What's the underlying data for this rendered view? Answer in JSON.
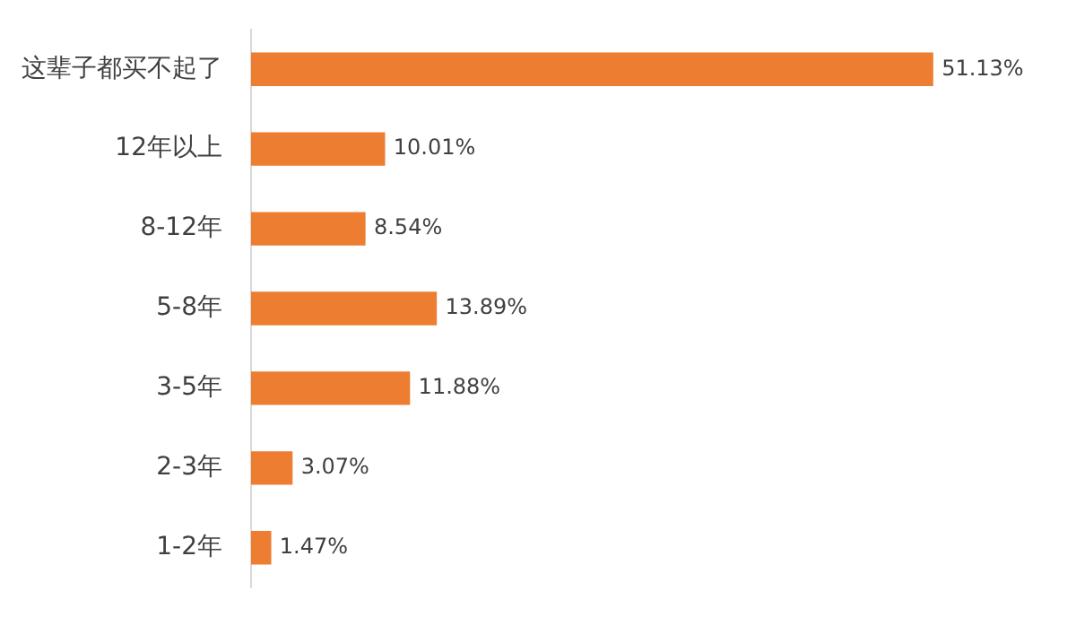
{
  "chart_data": {
    "type": "bar",
    "orientation": "horizontal",
    "categories": [
      "这辈子都买不起了",
      "12年以上",
      "8-12年",
      "5-8年",
      "3-5年",
      "2-3年",
      "1-2年"
    ],
    "values": [
      51.13,
      10.01,
      8.54,
      13.89,
      11.88,
      3.07,
      1.47
    ],
    "value_labels": [
      "51.13%",
      "10.01%",
      "8.54%",
      "13.89%",
      "11.88%",
      "3.07%",
      "1.47%"
    ],
    "color": "#ed7d31",
    "legend": false
  }
}
